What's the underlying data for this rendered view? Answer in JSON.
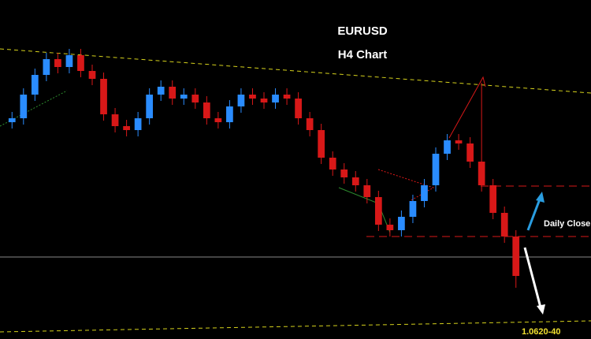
{
  "chart_data": {
    "type": "candlestick",
    "title": "EURUSD",
    "subtitle": "H4 Chart",
    "annotations": [
      "Daily Close",
      "1.0620-40"
    ],
    "up_color": "#2a8cff",
    "down_color": "#d81818",
    "ylim": [
      1.061,
      1.104
    ],
    "open": [
      1.0885,
      1.089,
      1.092,
      1.0945,
      1.0965,
      1.0955,
      1.097,
      1.095,
      1.094,
      1.0895,
      1.088,
      1.0875,
      1.089,
      1.092,
      1.093,
      1.0915,
      1.092,
      1.091,
      1.089,
      1.0885,
      1.0905,
      1.092,
      1.0915,
      1.091,
      1.092,
      1.0915,
      1.089,
      1.0875,
      1.084,
      1.0825,
      1.0815,
      1.0805,
      1.079,
      1.0755,
      1.0748,
      1.0765,
      1.0785,
      1.0805,
      1.0845,
      1.0862,
      1.0858,
      1.0835,
      1.0805,
      1.077,
      1.074
    ],
    "high": [
      1.0898,
      1.0928,
      1.0953,
      1.0973,
      1.0973,
      1.0978,
      1.0978,
      1.0958,
      1.0948,
      1.0903,
      1.0888,
      1.0898,
      1.0928,
      1.0938,
      1.0938,
      1.0928,
      1.0928,
      1.0918,
      1.0898,
      1.0913,
      1.0928,
      1.0928,
      1.0923,
      1.0928,
      1.0928,
      1.0923,
      1.0898,
      1.0883,
      1.0848,
      1.0833,
      1.0823,
      1.0813,
      1.0798,
      1.0763,
      1.0773,
      1.0793,
      1.0813,
      1.0853,
      1.087,
      1.087,
      1.0866,
      1.0935,
      1.0813,
      1.0778,
      1.0748
    ],
    "low": [
      1.0877,
      1.0882,
      1.0912,
      1.0937,
      1.0947,
      1.0947,
      1.0942,
      1.0932,
      1.0887,
      1.0872,
      1.0867,
      1.0867,
      1.0882,
      1.0912,
      1.0907,
      1.0907,
      1.0902,
      1.0882,
      1.0877,
      1.0877,
      1.0897,
      1.0907,
      1.0902,
      1.0902,
      1.0907,
      1.0882,
      1.0867,
      1.0832,
      1.0817,
      1.0807,
      1.0797,
      1.0782,
      1.0747,
      1.074,
      1.074,
      1.0757,
      1.0777,
      1.0797,
      1.0837,
      1.085,
      1.0827,
      1.0797,
      1.0762,
      1.0732,
      1.0675
    ],
    "close": [
      1.089,
      1.092,
      1.0945,
      1.0965,
      1.0955,
      1.097,
      1.095,
      1.094,
      1.0895,
      1.088,
      1.0875,
      1.089,
      1.092,
      1.093,
      1.0915,
      1.092,
      1.091,
      1.089,
      1.0885,
      1.0905,
      1.092,
      1.0915,
      1.091,
      1.092,
      1.0915,
      1.089,
      1.0875,
      1.084,
      1.0825,
      1.0815,
      1.0805,
      1.079,
      1.0755,
      1.0748,
      1.0765,
      1.0785,
      1.0805,
      1.0845,
      1.0862,
      1.0858,
      1.0835,
      1.0805,
      1.077,
      1.074,
      1.069
    ]
  }
}
